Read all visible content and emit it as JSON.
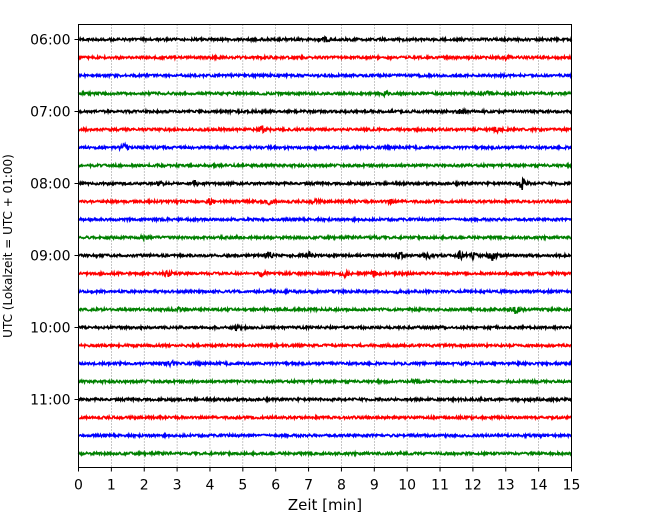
{
  "chart_data": {
    "type": "line",
    "title": "",
    "xlabel": "Zeit  [min]",
    "ylabel": "UTC (Lokalzeit = UTC + 01:00)",
    "xlim": [
      0,
      15
    ],
    "x_ticks": [
      "0",
      "1",
      "2",
      "3",
      "4",
      "5",
      "6",
      "7",
      "8",
      "9",
      "10",
      "11",
      "12",
      "13",
      "14",
      "15"
    ],
    "y_ticks": [
      "06:00",
      "07:00",
      "08:00",
      "09:00",
      "10:00",
      "11:00"
    ],
    "grid": "vertical dotted",
    "trace_colors": [
      "#000000",
      "#ff0000",
      "#0000ff",
      "#008000"
    ],
    "traces": [
      {
        "start": "06:00",
        "events": [
          [
            7.5,
            0.25
          ]
        ]
      },
      {
        "start": "06:15",
        "events": [
          [
            13.0,
            0.15
          ]
        ]
      },
      {
        "start": "06:30",
        "events": []
      },
      {
        "start": "06:45",
        "events": [
          [
            9.3,
            0.2
          ],
          [
            12.5,
            0.2
          ]
        ]
      },
      {
        "start": "07:00",
        "events": [
          [
            11.6,
            0.25
          ]
        ]
      },
      {
        "start": "07:15",
        "events": [
          [
            5.6,
            0.4
          ],
          [
            12.7,
            0.3
          ]
        ]
      },
      {
        "start": "07:30",
        "events": [
          [
            1.4,
            0.3
          ]
        ]
      },
      {
        "start": "07:45",
        "events": []
      },
      {
        "start": "08:00",
        "events": [
          [
            2.5,
            0.2
          ],
          [
            3.6,
            0.35
          ],
          [
            13.5,
            0.55
          ]
        ]
      },
      {
        "start": "08:15",
        "events": [
          [
            4.0,
            0.3
          ],
          [
            5.8,
            0.25
          ],
          [
            7.2,
            0.2
          ],
          [
            9.5,
            0.2
          ]
        ]
      },
      {
        "start": "08:30",
        "events": []
      },
      {
        "start": "08:45",
        "events": [
          [
            2.0,
            0.2
          ],
          [
            9.0,
            0.15
          ]
        ]
      },
      {
        "start": "09:00",
        "events": [
          [
            5.8,
            0.4
          ],
          [
            7.0,
            0.35
          ],
          [
            9.8,
            0.45
          ],
          [
            10.6,
            0.5
          ],
          [
            11.6,
            0.45
          ],
          [
            12.0,
            0.3
          ],
          [
            12.6,
            0.5
          ]
        ]
      },
      {
        "start": "09:15",
        "events": [
          [
            2.7,
            0.35
          ],
          [
            5.6,
            0.3
          ],
          [
            8.1,
            0.25
          ],
          [
            9.0,
            0.25
          ]
        ]
      },
      {
        "start": "09:30",
        "events": [
          [
            9.8,
            0.15
          ]
        ]
      },
      {
        "start": "09:45",
        "events": [
          [
            3.0,
            0.2
          ],
          [
            13.3,
            0.5
          ]
        ]
      },
      {
        "start": "10:00",
        "events": [
          [
            4.8,
            0.2
          ]
        ]
      },
      {
        "start": "10:15",
        "events": []
      },
      {
        "start": "10:30",
        "events": [
          [
            2.8,
            0.35
          ]
        ]
      },
      {
        "start": "10:45",
        "events": [
          [
            10.3,
            0.2
          ]
        ]
      },
      {
        "start": "11:00",
        "events": [
          [
            13.6,
            0.15
          ]
        ]
      },
      {
        "start": "11:15",
        "events": []
      },
      {
        "start": "11:30",
        "events": []
      },
      {
        "start": "11:45",
        "events": []
      }
    ]
  }
}
